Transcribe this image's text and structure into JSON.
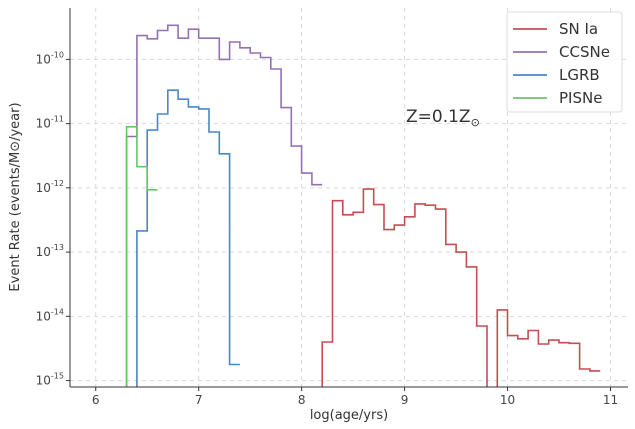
{
  "chart_data": {
    "type": "line",
    "step": true,
    "xlabel": "log(age/yrs)",
    "ylabel": "Event Rate (events/M⊙/year)",
    "xlim": [
      5.75,
      11.17
    ],
    "ylog": true,
    "ylim_exp": [
      -15.1,
      -9.2
    ],
    "xticks": [
      6,
      7,
      8,
      9,
      10,
      11
    ],
    "yticks_exp": [
      -15,
      -14,
      -13,
      -12,
      -11,
      -10
    ],
    "grid": true,
    "annotation": {
      "text_main": "Z=0.1Z",
      "text_sub": "⊙",
      "x": 9.0,
      "y_exp": -10.9
    },
    "legend": {
      "position": "top-right",
      "entries": [
        "SN Ia",
        "CCSNe",
        "LGRB",
        "PISNe"
      ]
    },
    "series": [
      {
        "name": "SN Ia",
        "color": "#c44e52",
        "bins": [
          [
            8.2,
            8.3,
            -14.4
          ],
          [
            8.3,
            8.4,
            -12.2
          ],
          [
            8.4,
            8.5,
            -12.42
          ],
          [
            8.5,
            8.6,
            -12.38
          ],
          [
            8.6,
            8.7,
            -12.02
          ],
          [
            8.7,
            8.8,
            -12.26
          ],
          [
            8.8,
            8.9,
            -12.65
          ],
          [
            8.9,
            9.0,
            -12.58
          ],
          [
            9.0,
            9.1,
            -12.45
          ],
          [
            9.1,
            9.2,
            -12.25
          ],
          [
            9.2,
            9.3,
            -12.27
          ],
          [
            9.3,
            9.4,
            -12.33
          ],
          [
            9.4,
            9.5,
            -12.88
          ],
          [
            9.5,
            9.6,
            -13.0
          ],
          [
            9.6,
            9.7,
            -13.23
          ],
          [
            9.7,
            9.8,
            -14.15
          ],
          [
            9.8,
            9.9,
            -15.2
          ],
          [
            9.9,
            10.0,
            -13.9
          ],
          [
            10.0,
            10.1,
            -14.3
          ],
          [
            10.1,
            10.2,
            -14.35
          ],
          [
            10.2,
            10.3,
            -14.22
          ],
          [
            10.3,
            10.4,
            -14.43
          ],
          [
            10.4,
            10.5,
            -14.37
          ],
          [
            10.5,
            10.6,
            -14.41
          ],
          [
            10.6,
            10.7,
            -14.42
          ],
          [
            10.7,
            10.8,
            -14.82
          ],
          [
            10.8,
            10.9,
            -14.85
          ]
        ]
      },
      {
        "name": "CCSNe",
        "color": "#9372b2",
        "bins": [
          [
            6.3,
            6.4,
            -11.2
          ],
          [
            6.4,
            6.5,
            -9.63
          ],
          [
            6.5,
            6.6,
            -9.68
          ],
          [
            6.6,
            6.7,
            -9.55
          ],
          [
            6.7,
            6.8,
            -9.47
          ],
          [
            6.8,
            6.9,
            -9.67
          ],
          [
            6.9,
            7.0,
            -9.53
          ],
          [
            7.0,
            7.1,
            -9.67
          ],
          [
            7.1,
            7.2,
            -9.67
          ],
          [
            7.2,
            7.3,
            -10.0
          ],
          [
            7.3,
            7.4,
            -9.73
          ],
          [
            7.4,
            7.5,
            -9.82
          ],
          [
            7.5,
            7.6,
            -9.9
          ],
          [
            7.6,
            7.7,
            -9.97
          ],
          [
            7.7,
            7.8,
            -10.15
          ],
          [
            7.8,
            7.9,
            -10.75
          ],
          [
            7.9,
            8.0,
            -11.35
          ],
          [
            8.0,
            8.1,
            -11.77
          ],
          [
            8.1,
            8.2,
            -11.95
          ]
        ]
      },
      {
        "name": "LGRB",
        "color": "#4a87c5",
        "bins": [
          [
            6.4,
            6.5,
            -12.67
          ],
          [
            6.5,
            6.6,
            -11.1
          ],
          [
            6.6,
            6.7,
            -10.85
          ],
          [
            6.7,
            6.8,
            -10.48
          ],
          [
            6.8,
            6.9,
            -10.62
          ],
          [
            6.9,
            7.0,
            -10.74
          ],
          [
            7.0,
            7.1,
            -10.77
          ],
          [
            7.1,
            7.2,
            -11.13
          ],
          [
            7.2,
            7.3,
            -11.47
          ],
          [
            7.3,
            7.4,
            -14.75
          ]
        ]
      },
      {
        "name": "PISNe",
        "color": "#6ac46a",
        "bins": [
          [
            6.3,
            6.4,
            -11.05
          ],
          [
            6.4,
            6.5,
            -11.67
          ],
          [
            6.5,
            6.6,
            -12.03
          ]
        ]
      }
    ]
  }
}
